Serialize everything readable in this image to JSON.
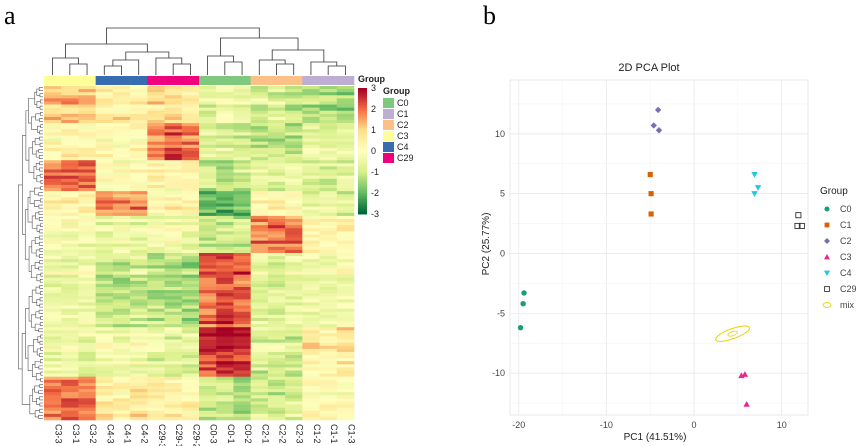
{
  "chart_data": [
    {
      "type": "heatmap",
      "panel_label": "a",
      "columns": [
        "C3-3",
        "C3-1",
        "C3-2",
        "C4-3",
        "C4-1",
        "C4-2",
        "C29-3",
        "C29-1",
        "C29-2",
        "C0-3",
        "C0-1",
        "C0-2",
        "C2-1",
        "C2-2",
        "C2-3",
        "C1-2",
        "C1-1",
        "C1-3"
      ],
      "column_groups": [
        "C3",
        "C3",
        "C3",
        "C4",
        "C4",
        "C4",
        "C29",
        "C29",
        "C29",
        "C0",
        "C0",
        "C0",
        "C2",
        "C2",
        "C2",
        "C1",
        "C1",
        "C1"
      ],
      "color_scale": {
        "ticks": [
          3,
          2,
          1,
          0,
          -1,
          -2,
          -3
        ],
        "min": -3,
        "max": 3
      },
      "group_legend": {
        "bar_title": "Group",
        "title": "Group",
        "entries": [
          {
            "name": "C0",
            "color": "#7fc97f"
          },
          {
            "name": "C1",
            "color": "#beaed4"
          },
          {
            "name": "C2",
            "color": "#fdc086"
          },
          {
            "name": "C3",
            "color": "#ffff99"
          },
          {
            "name": "C4",
            "color": "#386cb0"
          },
          {
            "name": "C29",
            "color": "#f0027f"
          }
        ]
      },
      "row_blocks": [
        {
          "rows": 12,
          "pattern": [
            1.2,
            1.3,
            1.1,
            0.5,
            0.6,
            0.4,
            0.8,
            0.9,
            0.7,
            -0.6,
            -0.4,
            -0.5,
            -0.9,
            -0.8,
            -1.0,
            -1.3,
            -1.2,
            -1.4
          ]
        },
        {
          "rows": 12,
          "pattern": [
            0.3,
            0.4,
            0.2,
            0.2,
            0.1,
            0.3,
            2.0,
            2.2,
            1.9,
            -0.8,
            -0.7,
            -0.9,
            -1.1,
            -1.0,
            -1.2,
            -0.6,
            -0.7,
            -0.5
          ]
        },
        {
          "rows": 10,
          "pattern": [
            2.1,
            2.0,
            2.2,
            0.2,
            0.1,
            0.3,
            0.4,
            0.2,
            0.3,
            -0.9,
            -1.0,
            -0.8,
            -0.5,
            -0.6,
            -0.4,
            -0.7,
            -0.8,
            -0.6
          ]
        },
        {
          "rows": 8,
          "pattern": [
            0.4,
            0.3,
            0.5,
            1.6,
            1.5,
            1.7,
            0.2,
            0.3,
            0.1,
            -2.0,
            -2.2,
            -1.9,
            0.2,
            0.3,
            0.1,
            -0.6,
            -0.5,
            -0.7
          ]
        },
        {
          "rows": 12,
          "pattern": [
            -0.2,
            -0.1,
            -0.3,
            -0.5,
            -0.4,
            -0.6,
            -0.3,
            -0.2,
            -0.4,
            -1.0,
            -0.9,
            -1.1,
            1.9,
            2.1,
            2.0,
            0.3,
            0.2,
            0.4
          ]
        },
        {
          "rows": 24,
          "pattern": [
            -0.3,
            -0.4,
            -0.2,
            -0.9,
            -1.0,
            -0.8,
            -1.2,
            -1.1,
            -1.3,
            2.1,
            2.4,
            2.2,
            -0.5,
            -0.6,
            -0.4,
            -0.2,
            -0.3,
            -0.1
          ]
        },
        {
          "rows": 16,
          "pattern": [
            -0.4,
            -0.3,
            -0.5,
            -0.2,
            -0.3,
            -0.1,
            -0.6,
            -0.5,
            -0.7,
            2.6,
            2.8,
            2.5,
            -0.8,
            -0.7,
            -0.9,
            0.6,
            0.5,
            0.7
          ]
        },
        {
          "rows": 14,
          "pattern": [
            1.9,
            2.0,
            1.8,
            0.6,
            0.5,
            0.7,
            0.5,
            0.6,
            0.4,
            -1.1,
            -1.0,
            -1.2,
            -0.9,
            -1.0,
            -0.8,
            0.2,
            0.3,
            0.1
          ]
        }
      ]
    },
    {
      "type": "scatter",
      "panel_label": "b",
      "title": "2D PCA Plot",
      "xlabel": "PC1 (41.51%)",
      "ylabel": "PC2 (25.77%)",
      "xlim": [
        -21,
        13
      ],
      "ylim": [
        -13.5,
        14.5
      ],
      "xticks": [
        -20,
        -10,
        0,
        10
      ],
      "yticks": [
        10,
        5,
        0,
        -5,
        -10
      ],
      "legend_title": "Group",
      "series": [
        {
          "name": "C0",
          "color": "#1a9e77",
          "marker": "circle",
          "points": [
            [
              -19.4,
              -3.3
            ],
            [
              -19.5,
              -4.2
            ],
            [
              -19.8,
              -6.2
            ]
          ]
        },
        {
          "name": "C1",
          "color": "#d95f02",
          "marker": "square",
          "points": [
            [
              -5.0,
              6.6
            ],
            [
              -4.9,
              5.0
            ],
            [
              -4.9,
              3.3
            ]
          ]
        },
        {
          "name": "C2",
          "color": "#7570b3",
          "marker": "diamond",
          "points": [
            [
              -4.1,
              12.0
            ],
            [
              -4.6,
              10.7
            ],
            [
              -4.0,
              10.3
            ]
          ]
        },
        {
          "name": "C3",
          "color": "#e7298a",
          "marker": "triangle",
          "points": [
            [
              5.4,
              -10.2
            ],
            [
              5.8,
              -10.1
            ],
            [
              6.0,
              -12.6
            ]
          ]
        },
        {
          "name": "C4",
          "color": "#1fc7e6",
          "marker": "triangle-down",
          "points": [
            [
              6.9,
              6.6
            ],
            [
              7.3,
              5.5
            ],
            [
              6.9,
              5.0
            ]
          ]
        },
        {
          "name": "C29",
          "color": "#333333",
          "marker": "open-square",
          "points": [
            [
              11.9,
              3.2
            ],
            [
              11.8,
              2.3
            ],
            [
              12.3,
              2.3
            ]
          ]
        },
        {
          "name": "mix",
          "color": "#e6d400",
          "marker": "ellipse",
          "points": [
            [
              4.4,
              -6.7
            ]
          ]
        }
      ]
    }
  ]
}
